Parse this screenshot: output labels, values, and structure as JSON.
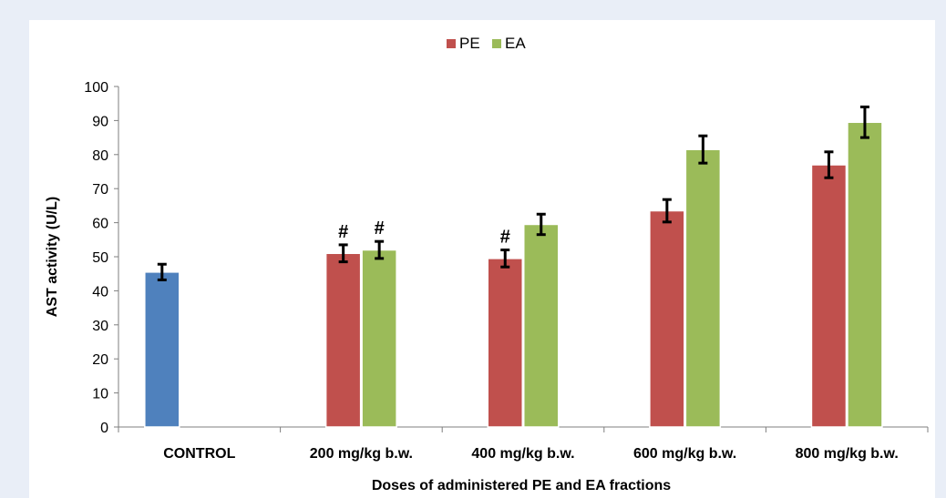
{
  "chart_data": {
    "type": "bar",
    "title": "",
    "categories": [
      "CONTROL",
      "200 mg/kg b.w.",
      "400 mg/kg b.w.",
      "600 mg/kg b.w.",
      "800 mg/kg b.w."
    ],
    "series": [
      {
        "name": "",
        "color": "#4f81bd",
        "values": [
          45.5,
          null,
          null,
          null,
          null
        ],
        "errors": [
          2.3,
          null,
          null,
          null,
          null
        ],
        "marks": [
          "",
          "",
          "",
          "",
          ""
        ]
      },
      {
        "name": "PE",
        "color": "#c0504d",
        "values": [
          null,
          51,
          49.5,
          63.5,
          77
        ],
        "errors": [
          null,
          2.5,
          2.5,
          3.3,
          3.8
        ],
        "marks": [
          "",
          "#",
          "#",
          "",
          ""
        ]
      },
      {
        "name": "EA",
        "color": "#9bbb59",
        "values": [
          null,
          52,
          59.5,
          81.5,
          89.5
        ],
        "errors": [
          null,
          2.5,
          3,
          4,
          4.5
        ],
        "marks": [
          "",
          "#",
          "",
          "",
          ""
        ]
      }
    ],
    "xlabel": "Doses of administered PE and EA fractions",
    "ylabel": "AST activity (U/L)",
    "ylim": [
      0,
      100
    ],
    "yticks": [
      0,
      10,
      20,
      30,
      40,
      50,
      60,
      70,
      80,
      90,
      100
    ],
    "grid": false,
    "legend": "top-center"
  }
}
